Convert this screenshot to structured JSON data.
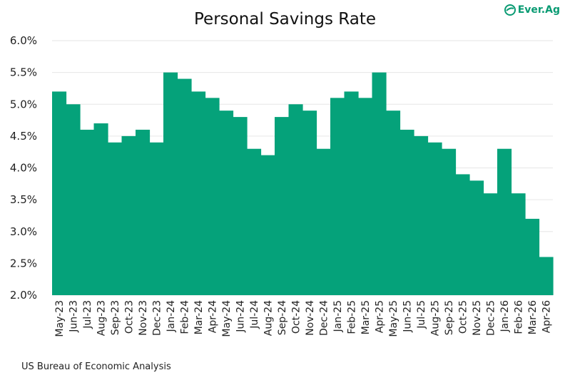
{
  "chart_data": {
    "type": "bar",
    "title": "Personal Savings Rate",
    "xlabel": "",
    "ylabel": "",
    "ylim": [
      2.0,
      6.0
    ],
    "yticks": [
      "2.0%",
      "2.5%",
      "3.0%",
      "3.5%",
      "4.0%",
      "4.5%",
      "5.0%",
      "5.5%",
      "6.0%"
    ],
    "grid": true,
    "bar_color": "#05a27a",
    "categories": [
      "May-23",
      "Jun-23",
      "Jul-23",
      "Aug-23",
      "Sep-23",
      "Oct-23",
      "Nov-23",
      "Dec-23",
      "Jan-24",
      "Feb-24",
      "Mar-24",
      "Apr-24",
      "May-24",
      "Jun-24",
      "Jul-24",
      "Aug-24",
      "Sep-24",
      "Oct-24",
      "Nov-24",
      "Dec-24",
      "Jan-25",
      "Feb-25",
      "Mar-25",
      "Apr-25",
      "May-25",
      "Jun-25",
      "Jul-25",
      "Aug-25",
      "Sep-25",
      "Oct-25",
      "Nov-25",
      "Dec-25",
      "Jan-26",
      "Feb-26",
      "Mar-26",
      "Apr-26"
    ],
    "values": [
      5.2,
      5.0,
      4.6,
      4.7,
      4.4,
      4.5,
      4.6,
      4.4,
      5.5,
      5.4,
      5.2,
      5.1,
      4.9,
      4.8,
      4.3,
      4.2,
      4.8,
      5.0,
      4.9,
      4.3,
      5.1,
      5.2,
      5.1,
      5.5,
      4.9,
      4.6,
      4.5,
      4.4,
      4.3,
      3.9,
      3.8,
      3.6,
      4.3,
      3.6,
      3.2,
      2.6
    ]
  },
  "logo": {
    "text": "Ever.Ag",
    "icon": "leaf-icon",
    "color": "#0a9b73"
  },
  "source": "US Bureau of Economic Analysis"
}
